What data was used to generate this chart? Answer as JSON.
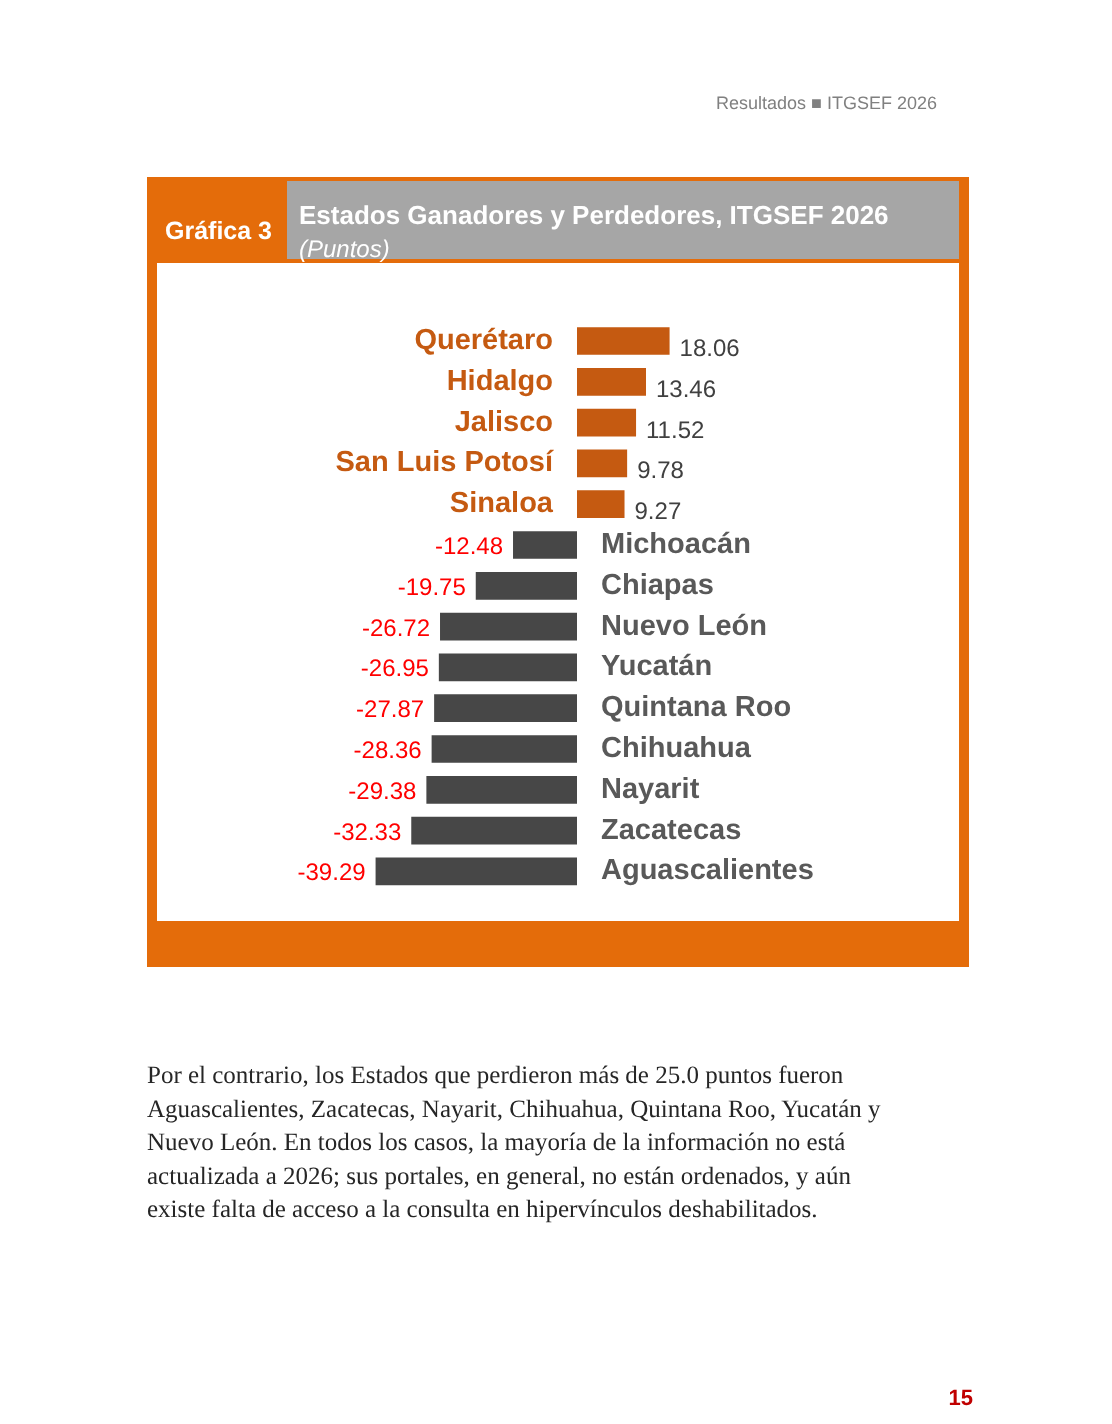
{
  "chart_data": {
    "type": "bar",
    "orientation": "horizontal",
    "title": "Estados Ganadores y Perdedores, ITGSEF 2026",
    "subtitle": "(Puntos)",
    "categories": [
      "Querétaro",
      "Hidalgo",
      "Jalisco",
      "San Luis Potosí",
      "Sinaloa",
      "Michoacán",
      "Chiapas",
      "Nuevo León",
      "Yucatán",
      "Quintana Roo",
      "Chihuahua",
      "Nayarit",
      "Zacatecas",
      "Aguascalientes"
    ],
    "values": [
      18.06,
      13.46,
      11.52,
      9.78,
      9.27,
      -12.48,
      -19.75,
      -26.72,
      -26.95,
      -27.87,
      -28.36,
      -29.38,
      -32.33,
      -39.29
    ],
    "colors": [
      "#c55a11",
      "#c55a11",
      "#c55a11",
      "#c55a11",
      "#c55a11",
      "#474747",
      "#474747",
      "#474747",
      "#474747",
      "#474747",
      "#474747",
      "#474747",
      "#474747",
      "#474747"
    ],
    "data_labels": true,
    "annotations": [
      "Gráfica 3",
      "Resultados ■ ITGSEF 2026",
      "Por el contrario, los Estados que perdieron más de 25.0 puntos fueron Aguascalientes, Zacatecas, Nayarit, Chihuahua, Quintana Roo, Yucatán y Nuevo León. En todos los casos, la mayoría de la información no está actualizada a 2026; sus portales, en general, no están ordenados, y aún existe falta de acceso a la consulta en hipervínculos deshabilitados.",
      "15"
    ]
  }
}
